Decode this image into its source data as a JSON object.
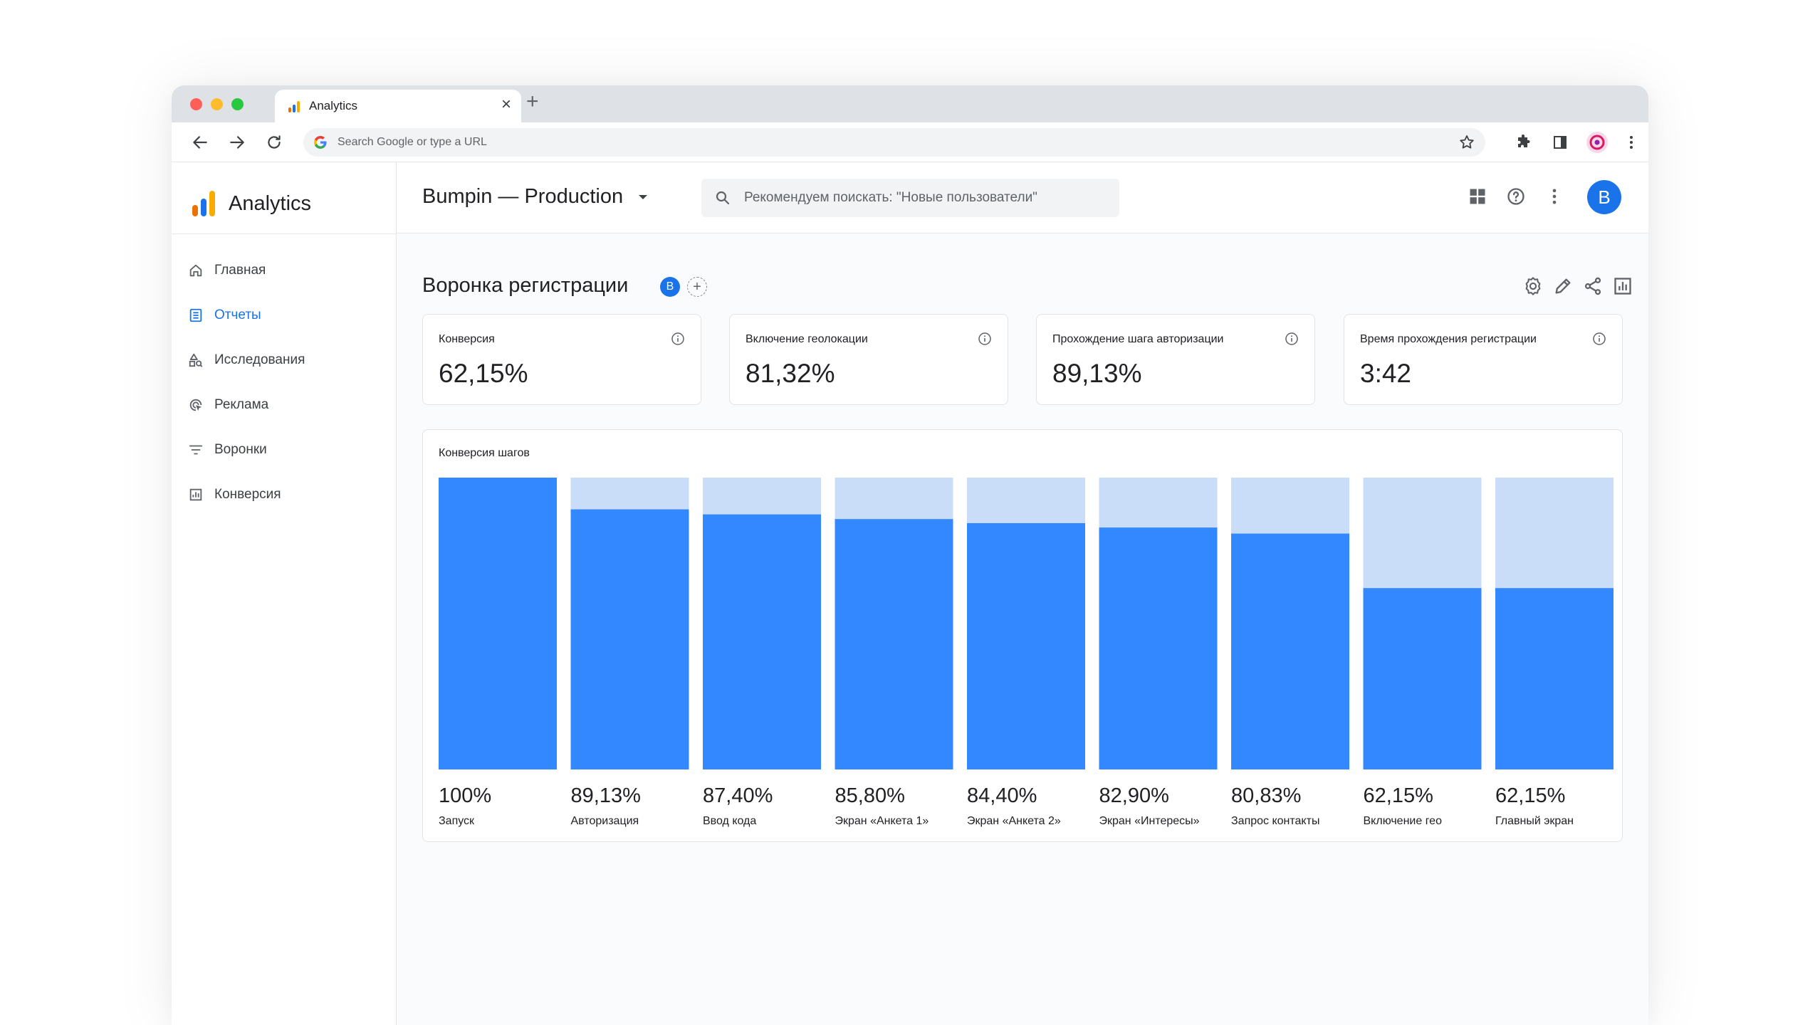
{
  "browser": {
    "tab_title": "Analytics",
    "omnibox_placeholder": "Search Google or type a URL"
  },
  "app": {
    "brand": "Analytics",
    "property": "Bumpin — Production",
    "search_placeholder": "Рекомендуем поискать: \"Новые пользователи\"",
    "avatar_letter": "B"
  },
  "sidebar": {
    "items": [
      {
        "label": "Главная",
        "icon": "home-icon",
        "active": false
      },
      {
        "label": "Отчеты",
        "icon": "reports-icon",
        "active": true
      },
      {
        "label": "Исследования",
        "icon": "explore-icon",
        "active": false
      },
      {
        "label": "Реклама",
        "icon": "advertising-icon",
        "active": false
      },
      {
        "label": "Воронки",
        "icon": "funnel-icon",
        "active": false
      },
      {
        "label": "Конверсия",
        "icon": "conversion-icon",
        "active": false
      }
    ]
  },
  "page": {
    "title": "Воронка регистрации",
    "badge": "B",
    "add": "+"
  },
  "kpis": [
    {
      "label": "Конверсия",
      "value": "62,15%"
    },
    {
      "label": "Включение геолокации",
      "value": "81,32%"
    },
    {
      "label": "Прохождение шага авторизации",
      "value": "89,13%"
    },
    {
      "label": "Время прохождения регистрации",
      "value": "3:42"
    }
  ],
  "colors": {
    "accent": "#1a73e8",
    "bar_fill": "#3388ff",
    "bar_track": "#c9dcf8"
  },
  "chart_data": {
    "type": "bar",
    "title": "Конверсия шагов",
    "categories": [
      "Запуск",
      "Авторизация",
      "Ввод кода",
      "Экран «Анкета 1»",
      "Экран «Анкета 2»",
      "Экран «Интересы»",
      "Запрос контакты",
      "Включение гео",
      "Главный экран"
    ],
    "values": [
      100,
      89.13,
      87.4,
      85.8,
      84.4,
      82.9,
      80.83,
      62.15,
      62.15
    ],
    "value_labels": [
      "100%",
      "89,13%",
      "87,40%",
      "85,80%",
      "84,40%",
      "82,90%",
      "80,83%",
      "62,15%",
      "62,15%"
    ],
    "ylim": [
      0,
      100
    ],
    "grid": false
  }
}
